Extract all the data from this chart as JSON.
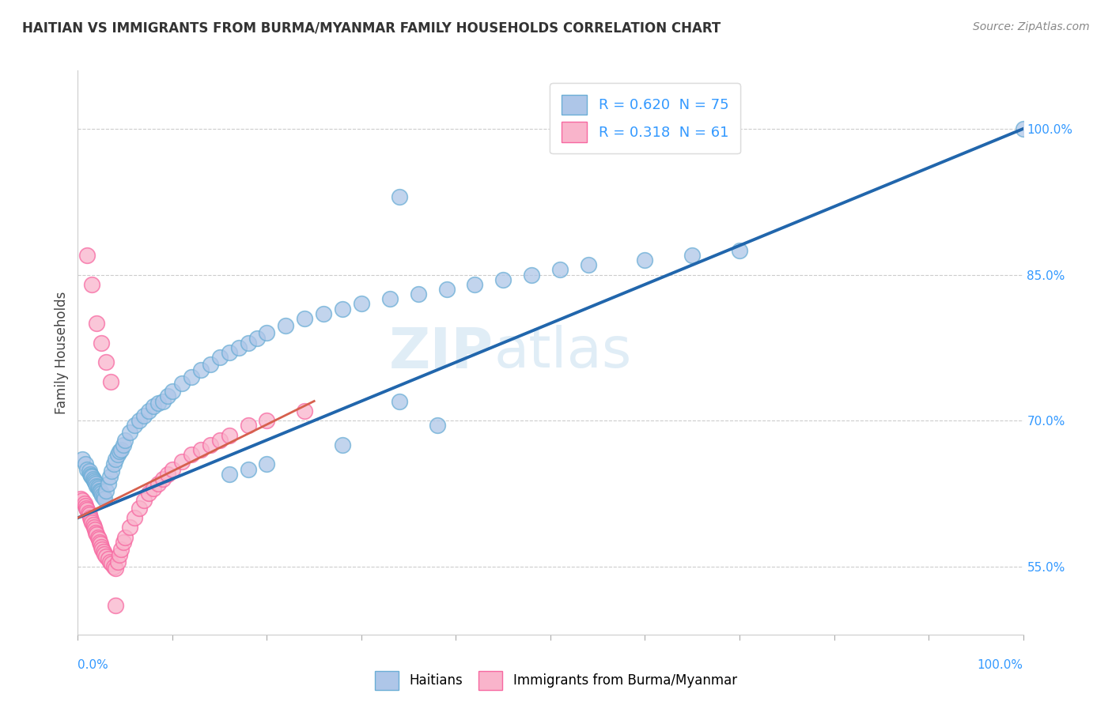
{
  "title": "HAITIAN VS IMMIGRANTS FROM BURMA/MYANMAR FAMILY HOUSEHOLDS CORRELATION CHART",
  "source": "Source: ZipAtlas.com",
  "ylabel": "Family Households",
  "ylabel_right_ticks": [
    "55.0%",
    "70.0%",
    "85.0%",
    "100.0%"
  ],
  "ylabel_right_values": [
    0.55,
    0.7,
    0.85,
    1.0
  ],
  "xtick_labels": [
    "0.0%",
    "100.0%"
  ],
  "xmin": 0.0,
  "xmax": 1.0,
  "ymin": 0.48,
  "ymax": 1.06,
  "legend_entries": [
    {
      "label": "R = 0.620  N = 75",
      "color": "#a8c4e0"
    },
    {
      "label": "R = 0.318  N = 61",
      "color": "#f4b8c8"
    }
  ],
  "legend_labels_bottom": [
    "Haitians",
    "Immigrants from Burma/Myanmar"
  ],
  "watermark_zip": "ZIP",
  "watermark_atlas": "atlas",
  "blue_color": "#6baed6",
  "pink_color": "#f768a1",
  "blue_fill": "#aec6e8",
  "pink_fill": "#f9b4cb",
  "trend_blue_color": "#2166ac",
  "trend_pink_color": "#d6604d",
  "trend_gray_color": "#c0c0c0",
  "grid_color": "#cccccc",
  "blue_x": [
    0.005,
    0.008,
    0.01,
    0.012,
    0.013,
    0.014,
    0.015,
    0.016,
    0.017,
    0.018,
    0.019,
    0.02,
    0.021,
    0.022,
    0.023,
    0.024,
    0.025,
    0.026,
    0.027,
    0.028,
    0.03,
    0.032,
    0.034,
    0.036,
    0.038,
    0.04,
    0.042,
    0.044,
    0.046,
    0.048,
    0.05,
    0.055,
    0.06,
    0.065,
    0.07,
    0.075,
    0.08,
    0.085,
    0.09,
    0.095,
    0.1,
    0.11,
    0.12,
    0.13,
    0.14,
    0.15,
    0.16,
    0.17,
    0.18,
    0.19,
    0.2,
    0.22,
    0.24,
    0.26,
    0.28,
    0.3,
    0.33,
    0.36,
    0.39,
    0.42,
    0.45,
    0.48,
    0.51,
    0.54,
    0.6,
    0.65,
    0.7,
    0.34,
    0.38,
    0.28,
    0.2,
    0.18,
    0.16,
    1.0,
    0.34
  ],
  "blue_y": [
    0.66,
    0.655,
    0.65,
    0.648,
    0.645,
    0.643,
    0.642,
    0.64,
    0.638,
    0.637,
    0.635,
    0.633,
    0.632,
    0.63,
    0.628,
    0.627,
    0.625,
    0.623,
    0.622,
    0.62,
    0.628,
    0.635,
    0.642,
    0.648,
    0.655,
    0.66,
    0.665,
    0.668,
    0.67,
    0.675,
    0.68,
    0.688,
    0.695,
    0.7,
    0.705,
    0.71,
    0.715,
    0.718,
    0.72,
    0.725,
    0.73,
    0.738,
    0.745,
    0.752,
    0.758,
    0.765,
    0.77,
    0.775,
    0.78,
    0.785,
    0.79,
    0.798,
    0.805,
    0.81,
    0.815,
    0.82,
    0.825,
    0.83,
    0.835,
    0.84,
    0.845,
    0.85,
    0.855,
    0.86,
    0.865,
    0.87,
    0.875,
    0.72,
    0.695,
    0.675,
    0.655,
    0.65,
    0.645,
    1.0,
    0.93
  ],
  "pink_x": [
    0.003,
    0.005,
    0.007,
    0.008,
    0.009,
    0.01,
    0.011,
    0.012,
    0.013,
    0.014,
    0.015,
    0.016,
    0.017,
    0.018,
    0.019,
    0.02,
    0.021,
    0.022,
    0.023,
    0.024,
    0.025,
    0.026,
    0.027,
    0.028,
    0.03,
    0.032,
    0.034,
    0.036,
    0.038,
    0.04,
    0.042,
    0.044,
    0.046,
    0.048,
    0.05,
    0.055,
    0.06,
    0.065,
    0.07,
    0.075,
    0.08,
    0.085,
    0.09,
    0.095,
    0.1,
    0.11,
    0.12,
    0.13,
    0.14,
    0.15,
    0.16,
    0.18,
    0.2,
    0.24,
    0.01,
    0.015,
    0.02,
    0.025,
    0.03,
    0.035,
    0.04
  ],
  "pink_y": [
    0.62,
    0.618,
    0.615,
    0.612,
    0.61,
    0.608,
    0.605,
    0.603,
    0.6,
    0.598,
    0.595,
    0.593,
    0.59,
    0.588,
    0.585,
    0.583,
    0.58,
    0.578,
    0.575,
    0.573,
    0.57,
    0.568,
    0.565,
    0.563,
    0.56,
    0.558,
    0.555,
    0.553,
    0.55,
    0.548,
    0.555,
    0.562,
    0.568,
    0.575,
    0.58,
    0.59,
    0.6,
    0.61,
    0.618,
    0.625,
    0.63,
    0.635,
    0.64,
    0.645,
    0.65,
    0.658,
    0.665,
    0.67,
    0.675,
    0.68,
    0.685,
    0.695,
    0.7,
    0.71,
    0.87,
    0.84,
    0.8,
    0.78,
    0.76,
    0.74,
    0.51
  ],
  "blue_trend": [
    0.0,
    1.0,
    0.6,
    1.0
  ],
  "pink_trend": [
    0.0,
    0.25,
    0.6,
    0.72
  ],
  "gray_trend": [
    0.0,
    1.0,
    0.6,
    1.0
  ]
}
